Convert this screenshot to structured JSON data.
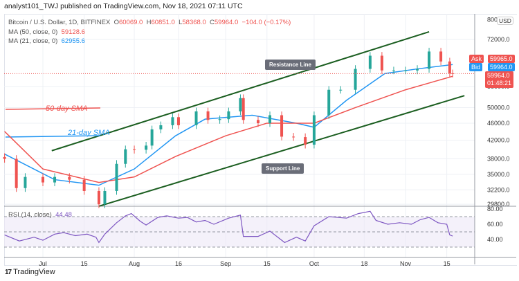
{
  "header": {
    "published": "analyst101_TWJ published on TradingView.com, Nov 18, 2021 07:11 UTC"
  },
  "legend": {
    "symbol": "Bitcoin / U.S. Dollar, 1D, BITFINEX",
    "o_label": "O",
    "o": "60069.0",
    "h_label": "H",
    "h": "60851.0",
    "l_label": "L",
    "l": "58368.0",
    "c_label": "C",
    "c": "59964.0",
    "change": "−104.0 (−0.17%)",
    "ma50_label": "MA (50, close, 0)",
    "ma50_value": "59128.6",
    "ma21_label": "MA (21, close, 0)",
    "ma21_value": "62955.6",
    "rsi_label": "RSI (14, close)",
    "rsi_value": "44.48"
  },
  "price_tags": {
    "ask_label": "Ask",
    "ask": "59965.0",
    "bid_label": "Bid",
    "bid": "59964.0",
    "last": "59964.0",
    "countdown": "01:48:21",
    "currency": "USD"
  },
  "annotations": {
    "resistance": "Resistance Line",
    "support": "Support Line",
    "sma50": "50-day SMA",
    "sma21": "21-day SMA"
  },
  "branding": {
    "logo": "TradingView"
  },
  "colors": {
    "up": "#26a69a",
    "down": "#ef5350",
    "ma50": "#ef5350",
    "ma21": "#2196f3",
    "channel": "#1b5e20",
    "rsi": "#7e57c2"
  },
  "chart_data": {
    "type": "candlestick",
    "y_scale": "log",
    "ylim": [
      29800,
      80000
    ],
    "y_ticks": [
      "80000.0",
      "72000.0",
      "56000.0",
      "50000.0",
      "46000.0",
      "42000.0",
      "38000.0",
      "35000.0",
      "32200.0",
      "29800.0"
    ],
    "x_ticks": [
      {
        "label": "Jul",
        "date": "2021-07-01"
      },
      {
        "label": "15",
        "date": "2021-07-15"
      },
      {
        "label": "Aug",
        "date": "2021-08-01"
      },
      {
        "label": "16",
        "date": "2021-08-16"
      },
      {
        "label": "Sep",
        "date": "2021-09-01"
      },
      {
        "label": "15",
        "date": "2021-09-15"
      },
      {
        "label": "Oct",
        "date": "2021-10-01"
      },
      {
        "label": "18",
        "date": "2021-10-18"
      },
      {
        "label": "Nov",
        "date": "2021-11-01"
      },
      {
        "label": "15",
        "date": "2021-11-15"
      }
    ],
    "closes": [
      [
        "2021-06-18",
        38000
      ],
      [
        "2021-06-22",
        32500
      ],
      [
        "2021-06-25",
        34500
      ],
      [
        "2021-07-01",
        33500
      ],
      [
        "2021-07-05",
        34500
      ],
      [
        "2021-07-10",
        34000
      ],
      [
        "2021-07-15",
        32000
      ],
      [
        "2021-07-20",
        29800
      ],
      [
        "2021-07-22",
        32000
      ],
      [
        "2021-07-26",
        37000
      ],
      [
        "2021-07-29",
        40000
      ],
      [
        "2021-08-01",
        39900
      ],
      [
        "2021-08-05",
        40800
      ],
      [
        "2021-08-07",
        44500
      ],
      [
        "2021-08-10",
        45500
      ],
      [
        "2021-08-14",
        47500
      ],
      [
        "2021-08-16",
        45500
      ],
      [
        "2021-08-22",
        49000
      ],
      [
        "2021-08-26",
        46800
      ],
      [
        "2021-08-30",
        47000
      ],
      [
        "2021-09-02",
        49000
      ],
      [
        "2021-09-06",
        52600
      ],
      [
        "2021-09-07",
        46800
      ],
      [
        "2021-09-12",
        46000
      ],
      [
        "2021-09-16",
        48000
      ],
      [
        "2021-09-20",
        42800
      ],
      [
        "2021-09-24",
        42700
      ],
      [
        "2021-09-28",
        41000
      ],
      [
        "2021-10-01",
        48000
      ],
      [
        "2021-10-06",
        55000
      ],
      [
        "2021-10-10",
        55000
      ],
      [
        "2021-10-15",
        61500
      ],
      [
        "2021-10-20",
        66000
      ],
      [
        "2021-10-24",
        61000
      ],
      [
        "2021-10-28",
        61000
      ],
      [
        "2021-11-01",
        61000
      ],
      [
        "2021-11-05",
        61500
      ],
      [
        "2021-11-09",
        67500
      ],
      [
        "2021-11-13",
        64000
      ],
      [
        "2021-11-16",
        60069
      ],
      [
        "2021-11-17",
        59964
      ]
    ],
    "series": [
      {
        "name": "MA (21, close, 0)",
        "points": [
          [
            "2021-06-18",
            39000
          ],
          [
            "2021-07-05",
            34000
          ],
          [
            "2021-07-20",
            33000
          ],
          [
            "2021-08-01",
            36000
          ],
          [
            "2021-08-15",
            43000
          ],
          [
            "2021-08-25",
            47000
          ],
          [
            "2021-09-10",
            48000
          ],
          [
            "2021-09-25",
            46000
          ],
          [
            "2021-10-01",
            45000
          ],
          [
            "2021-10-12",
            52000
          ],
          [
            "2021-10-25",
            60000
          ],
          [
            "2021-11-05",
            61500
          ],
          [
            "2021-11-17",
            62955.6
          ]
        ]
      },
      {
        "name": "MA (50, close, 0)",
        "points": [
          [
            "2021-06-18",
            44000
          ],
          [
            "2021-07-01",
            36000
          ],
          [
            "2021-07-20",
            33500
          ],
          [
            "2021-08-01",
            34500
          ],
          [
            "2021-08-15",
            38500
          ],
          [
            "2021-09-01",
            43000
          ],
          [
            "2021-09-15",
            46000
          ],
          [
            "2021-10-01",
            46000
          ],
          [
            "2021-10-15",
            50000
          ],
          [
            "2021-11-01",
            55000
          ],
          [
            "2021-11-17",
            59128.6
          ]
        ]
      }
    ],
    "trendlines": {
      "resistance": [
        [
          "2021-07-04",
          39700
        ],
        [
          "2021-11-09",
          75000
        ]
      ],
      "support": [
        [
          "2021-07-20",
          29500
        ],
        [
          "2021-11-21",
          53300
        ]
      ]
    },
    "rsi": {
      "ylim": [
        20,
        80
      ],
      "y_ticks": [
        "80.00",
        "60.00",
        "40.00"
      ],
      "bands": [
        30,
        50,
        70
      ],
      "points": [
        [
          "2021-06-18",
          46
        ],
        [
          "2021-06-23",
          38
        ],
        [
          "2021-06-28",
          43
        ],
        [
          "2021-07-01",
          39
        ],
        [
          "2021-07-05",
          47
        ],
        [
          "2021-07-08",
          49
        ],
        [
          "2021-07-12",
          45
        ],
        [
          "2021-07-16",
          47
        ],
        [
          "2021-07-19",
          43
        ],
        [
          "2021-07-20",
          36
        ],
        [
          "2021-07-22",
          47
        ],
        [
          "2021-07-26",
          62
        ],
        [
          "2021-07-29",
          71
        ],
        [
          "2021-07-31",
          74
        ],
        [
          "2021-08-03",
          64
        ],
        [
          "2021-08-05",
          59
        ],
        [
          "2021-08-09",
          69
        ],
        [
          "2021-08-12",
          71
        ],
        [
          "2021-08-16",
          68
        ],
        [
          "2021-08-19",
          69
        ],
        [
          "2021-08-22",
          63
        ],
        [
          "2021-08-25",
          65
        ],
        [
          "2021-08-28",
          60
        ],
        [
          "2021-09-02",
          68
        ],
        [
          "2021-09-06",
          72
        ],
        [
          "2021-09-07",
          44
        ],
        [
          "2021-09-12",
          44
        ],
        [
          "2021-09-16",
          51
        ],
        [
          "2021-09-21",
          36
        ],
        [
          "2021-09-25",
          43
        ],
        [
          "2021-09-28",
          38
        ],
        [
          "2021-10-01",
          58
        ],
        [
          "2021-10-06",
          70
        ],
        [
          "2021-10-12",
          68
        ],
        [
          "2021-10-16",
          74
        ],
        [
          "2021-10-20",
          77
        ],
        [
          "2021-10-22",
          65
        ],
        [
          "2021-10-26",
          60
        ],
        [
          "2021-10-30",
          62
        ],
        [
          "2021-11-03",
          60
        ],
        [
          "2021-11-06",
          66
        ],
        [
          "2021-11-09",
          69
        ],
        [
          "2021-11-12",
          62
        ],
        [
          "2021-11-15",
          60
        ],
        [
          "2021-11-16",
          46
        ],
        [
          "2021-11-17",
          44.48
        ]
      ]
    }
  }
}
